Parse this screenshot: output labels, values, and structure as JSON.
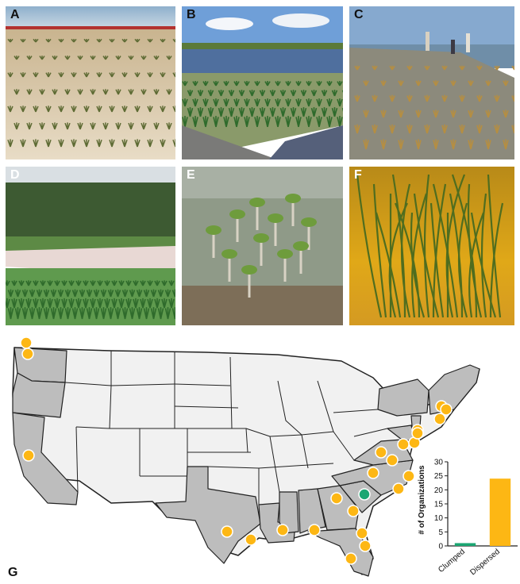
{
  "panels": [
    {
      "letter": "A",
      "scene": "sandy-dune-planting"
    },
    {
      "letter": "B",
      "scene": "shoreline-marsh-planting-with-riprap"
    },
    {
      "letter": "C",
      "scene": "beach-grass-planting-with-people"
    },
    {
      "letter": "D",
      "scene": "nursery-grass-beds-with-trees"
    },
    {
      "letter": "E",
      "scene": "mangrove-seedlings-in-shallow-water"
    },
    {
      "letter": "F",
      "scene": "underwater-seagrass"
    }
  ],
  "map": {
    "letter": "G",
    "colors": {
      "dispersed": "#FDB714",
      "clumped": "#1BA672",
      "shaded_state": "#BDBDBD",
      "unshaded_state": "#F1F1F1",
      "border": "#222222"
    },
    "site_markers": {
      "dispersed_count": 24,
      "clumped_count": 1
    }
  },
  "chart_data": {
    "type": "bar",
    "categories": [
      "Clumped",
      "Dispersed"
    ],
    "values": [
      1,
      24
    ],
    "colors": [
      "#1BA672",
      "#FDB714"
    ],
    "ylabel": "# of Organizations",
    "xlabel": "",
    "ylim": [
      0,
      30
    ],
    "yticks": [
      0,
      5,
      10,
      15,
      20,
      25,
      30
    ],
    "grid": false
  }
}
